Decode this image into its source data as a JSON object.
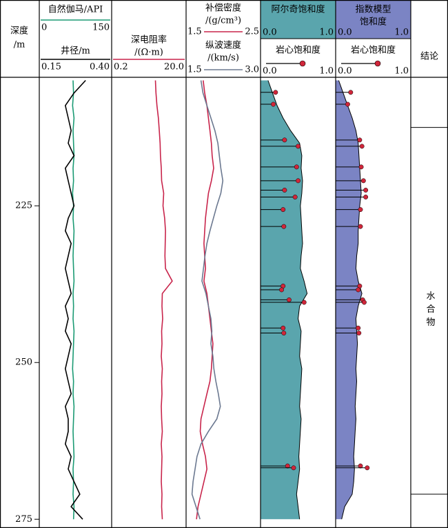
{
  "chart_data": {
    "type": "well-log",
    "depth_label": [
      "深度",
      "/m"
    ],
    "ylim": [
      204.5,
      276.4
    ],
    "yticks": [
      225,
      250,
      275
    ],
    "depth": [
      205,
      207,
      209,
      211,
      213,
      215,
      217,
      219,
      221,
      223,
      225,
      227,
      229,
      231,
      233,
      235,
      237,
      239,
      241,
      243,
      245,
      247,
      249,
      251,
      253,
      255,
      257,
      259,
      261,
      263,
      265,
      267,
      269,
      271,
      273,
      275
    ],
    "core_depth": [
      206.9,
      208.8,
      214.5,
      215.5,
      218.8,
      221.0,
      222.5,
      223.6,
      225.6,
      228.3,
      237.8,
      238.4,
      240.0,
      240.4,
      244.5,
      245.3,
      266.5,
      266.8
    ],
    "tracks": [
      {
        "curves": [
          {
            "name": [
              "自然伽马/API"
            ],
            "color": "#1a9a73",
            "xlim": [
              0,
              150
            ],
            "values": [
              70,
              71,
              69,
              72,
              70,
              71,
              72,
              70,
              71,
              69,
              71,
              70,
              72,
              71,
              70,
              71,
              72,
              70,
              71,
              70,
              72,
              71,
              70,
              69,
              71,
              70,
              72,
              71,
              70,
              71,
              72,
              70,
              71,
              70,
              72,
              71
            ]
          },
          {
            "name": [
              "井径/m"
            ],
            "color": "#000000",
            "xlim": [
              0.15,
              {
                "value": 0.4,
                "label": "0.40"
              }
            ],
            "values": [
              0.31,
              0.27,
              0.24,
              0.25,
              0.26,
              0.25,
              0.27,
              0.24,
              0.25,
              0.26,
              0.27,
              0.25,
              0.24,
              0.26,
              0.25,
              0.24,
              0.25,
              0.26,
              0.24,
              0.25,
              0.24,
              0.26,
              0.25,
              0.24,
              0.25,
              0.26,
              0.24,
              0.25,
              0.25,
              0.24,
              0.26,
              0.25,
              0.27,
              0.29,
              0.26,
              0.3
            ]
          }
        ]
      },
      {
        "curves": [
          {
            "name": [
              "深电阻率",
              "/(Ω·m)"
            ],
            "color": "#c8234a",
            "log": true,
            "xlim": [
              0.2,
              {
                "value": 20,
                "label": "20.0"
              }
            ],
            "values": [
              3.0,
              3.1,
              3.3,
              3.6,
              3.8,
              4.0,
              4.1,
              4.3,
              4.4,
              5.0,
              4.8,
              5.3,
              5.6,
              5.5,
              5.4,
              5.6,
              8.5,
              4.6,
              4.5,
              4.7,
              4.4,
              4.5,
              4.3,
              4.6,
              4.4,
              4.5,
              4.3,
              4.4,
              4.6,
              4.3,
              4.5,
              4.4,
              4.3,
              4.5,
              4.4,
              4.6
            ]
          }
        ]
      },
      {
        "curves": [
          {
            "name": [
              "补偿密度",
              "/(g/cm³)"
            ],
            "color": "#c8234a",
            "xlim": [
              1.5,
              2.5
            ],
            "values": [
              1.73,
              1.75,
              1.78,
              1.8,
              1.82,
              1.84,
              1.85,
              1.87,
              1.84,
              1.8,
              1.78,
              1.76,
              1.75,
              1.74,
              1.75,
              1.76,
              1.74,
              1.78,
              1.8,
              1.82,
              1.84,
              1.86,
              1.85,
              1.84,
              1.82,
              1.78,
              1.74,
              1.7,
              1.69,
              1.72,
              1.76,
              1.78,
              1.74,
              1.7,
              1.66,
              1.64
            ]
          },
          {
            "name": [
              "纵波速度",
              "/(km/s)"
            ],
            "color": "#6b7890",
            "xlim": [
              1.5,
              {
                "value": 3,
                "label": "3.0"
              }
            ],
            "values": [
              1.8,
              1.84,
              1.92,
              2.0,
              2.08,
              2.14,
              2.17,
              2.2,
              2.24,
              2.2,
              2.12,
              2.05,
              1.98,
              1.92,
              1.88,
              1.85,
              1.82,
              1.9,
              1.95,
              2.0,
              2.02,
              2.0,
              2.04,
              2.06,
              2.1,
              2.15,
              2.19,
              2.12,
              1.95,
              1.8,
              1.72,
              1.68,
              1.64,
              1.62,
              1.7,
              1.78
            ]
          }
        ]
      },
      {
        "curves": [
          {
            "name": [
              "阿尔奇饱和度"
            ],
            "color": "#5aa5ad",
            "fill": true,
            "xlim": [
              {
                "value": 0,
                "label": "0.0"
              },
              {
                "value": 1,
                "label": "1.0"
              }
            ],
            "values": [
              0.1,
              0.16,
              0.22,
              0.3,
              0.4,
              0.52,
              0.55,
              0.54,
              0.56,
              0.55,
              0.53,
              0.54,
              0.55,
              0.56,
              0.54,
              0.53,
              0.58,
              0.62,
              0.52,
              0.5,
              0.54,
              0.53,
              0.52,
              0.55,
              0.54,
              0.53,
              0.52,
              0.54,
              0.53,
              0.52,
              0.51,
              0.52,
              0.5,
              0.48,
              0.5,
              0.52
            ]
          }
        ],
        "core": {
          "name": "岩心饱和度",
          "color": "#d0263a",
          "xlim": [
            {
              "value": 0,
              "label": "0.0"
            },
            {
              "value": 1,
              "label": "1.0"
            }
          ],
          "values": [
            0.2,
            0.17,
            0.32,
            0.5,
            0.48,
            0.5,
            0.32,
            0.46,
            0.3,
            0.31,
            0.3,
            0.28,
            0.38,
            0.58,
            0.3,
            0.31,
            0.36,
            0.44
          ]
        }
      },
      {
        "curves": [
          {
            "name": [
              "指数模型",
              "饱和度"
            ],
            "color": "#7b84c4",
            "fill": true,
            "xlim": [
              {
                "value": 0,
                "label": "0.0"
              },
              {
                "value": 1,
                "label": "1.0"
              }
            ],
            "values": [
              0.04,
              0.1,
              0.16,
              0.22,
              0.27,
              0.3,
              0.31,
              0.32,
              0.33,
              0.34,
              0.32,
              0.31,
              0.3,
              0.3,
              0.28,
              0.27,
              0.3,
              0.35,
              0.3,
              0.27,
              0.28,
              0.29,
              0.28,
              0.27,
              0.28,
              0.27,
              0.26,
              0.27,
              0.26,
              0.25,
              0.24,
              0.25,
              0.24,
              0.22,
              0.12,
              0.08
            ]
          }
        ],
        "core": {
          "name": "岩心饱和度",
          "color": "#d0263a",
          "xlim": [
            {
              "value": 0,
              "label": "0.0"
            },
            {
              "value": 1,
              "label": "1.0"
            }
          ],
          "values": [
            0.2,
            0.16,
            0.32,
            0.35,
            0.34,
            0.37,
            0.4,
            0.4,
            0.33,
            0.33,
            0.32,
            0.3,
            0.36,
            0.38,
            0.3,
            0.31,
            0.33,
            0.42
          ]
        }
      }
    ],
    "conclusion": {
      "title": "结论",
      "intervals": [
        {
          "top": 212.5,
          "bottom": 271,
          "label": "水合物"
        }
      ]
    }
  }
}
